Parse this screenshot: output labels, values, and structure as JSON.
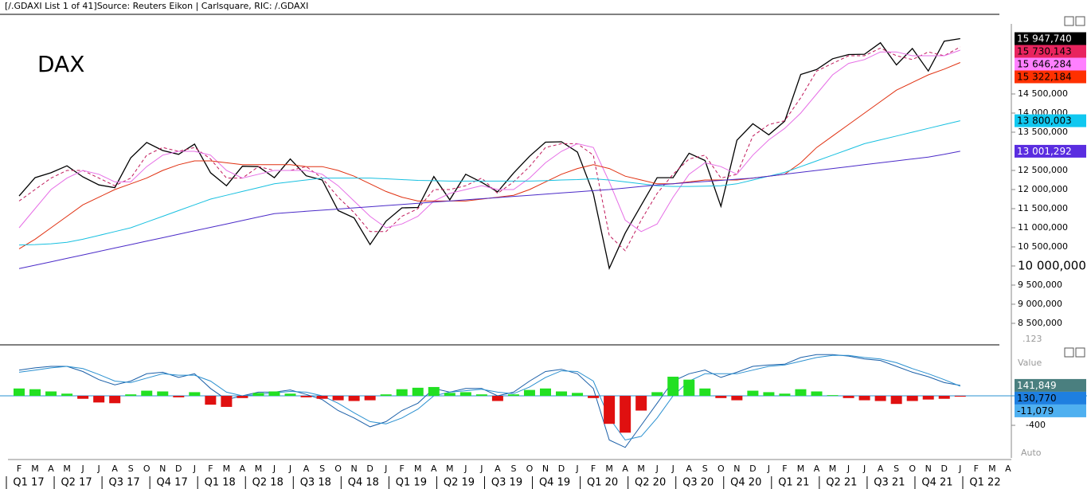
{
  "header": "[/.GDAXI List 1 of 41]Source: Reuters Eikon | Carlsquare, RIC: /.GDAXI",
  "chart_data": [
    {
      "type": "line",
      "title": "DAX",
      "corner_label": ".123",
      "ylim": [
        7937,
        16583
      ],
      "yticks": [
        {
          "value": 8500,
          "label": "8 500,000"
        },
        {
          "value": 9000,
          "label": "9 000,000"
        },
        {
          "value": 9500,
          "label": "9 500,000"
        },
        {
          "value": 10000,
          "label": "10 000,000"
        },
        {
          "value": 10500,
          "label": "10 500,000"
        },
        {
          "value": 11000,
          "label": "11 000,000"
        },
        {
          "value": 11500,
          "label": "11 500,000"
        },
        {
          "value": 12000,
          "label": "12 000,000"
        },
        {
          "value": 12500,
          "label": "12 500,000"
        },
        {
          "value": 13500,
          "label": "13 500,000"
        },
        {
          "value": 14000,
          "label": "14 000,000"
        },
        {
          "value": 14500,
          "label": "14 500,000"
        }
      ],
      "series": [
        {
          "color": "#000000",
          "box_color": "#000000",
          "box_text": "#ffffff",
          "last_label": "15 947,740",
          "values": [
            11830,
            12310,
            12440,
            12620,
            12330,
            12120,
            12050,
            12830,
            13230,
            13020,
            12920,
            13190,
            12440,
            12100,
            12610,
            12600,
            12310,
            12800,
            12360,
            12250,
            11450,
            11260,
            10560,
            11170,
            11520,
            11530,
            12340,
            11730,
            12400,
            12190,
            11940,
            12430,
            12870,
            13240,
            13250,
            12980,
            11890,
            9940,
            10860,
            11590,
            12310,
            12310,
            12950,
            12760,
            11560,
            13290,
            13720,
            13430,
            13790,
            15010,
            15140,
            15420,
            15530,
            15540,
            15840,
            15260,
            15690,
            15100,
            15880,
            15947.74,
            null,
            null,
            null
          ]
        },
        {
          "color": "#c0185a",
          "dashed": true,
          "box_color": "#e8245e",
          "box_text": "#000000",
          "last_label": "15 730,143",
          "values": [
            11700,
            12000,
            12300,
            12500,
            12500,
            12300,
            12100,
            12300,
            12900,
            13100,
            13000,
            13100,
            12800,
            12300,
            12300,
            12600,
            12500,
            12500,
            12600,
            12300,
            11800,
            11400,
            10900,
            10900,
            11300,
            11500,
            12000,
            12000,
            12100,
            12300,
            11900,
            12200,
            12600,
            13100,
            13200,
            13200,
            12900,
            10800,
            10400,
            11200,
            11900,
            12400,
            12800,
            12900,
            12300,
            12400,
            13400,
            13700,
            13800,
            14400,
            15100,
            15300,
            15500,
            15500,
            15700,
            15500,
            15400,
            15600,
            15500,
            15730.143,
            null,
            null,
            null
          ]
        },
        {
          "color": "#e66ee6",
          "box_color": "#ff80ff",
          "box_text": "#000000",
          "last_label": "15 646,284",
          "values": [
            11000,
            11500,
            12000,
            12300,
            12500,
            12400,
            12200,
            12200,
            12600,
            12900,
            13000,
            13000,
            12900,
            12500,
            12300,
            12400,
            12500,
            12500,
            12500,
            12400,
            12100,
            11700,
            11300,
            11000,
            11100,
            11300,
            11700,
            11900,
            12000,
            12100,
            12000,
            12000,
            12300,
            12700,
            13000,
            13200,
            13100,
            12200,
            11200,
            10900,
            11100,
            11800,
            12400,
            12700,
            12600,
            12400,
            12900,
            13300,
            13600,
            14000,
            14500,
            15000,
            15300,
            15400,
            15600,
            15600,
            15500,
            15500,
            15500,
            15646.284,
            null,
            null,
            null
          ]
        },
        {
          "color": "#e03010",
          "box_color": "#ff3000",
          "box_text": "#000000",
          "last_label": "15 322,184",
          "values": [
            10450,
            10700,
            11000,
            11300,
            11600,
            11800,
            12000,
            12150,
            12300,
            12500,
            12650,
            12750,
            12750,
            12700,
            12650,
            12650,
            12650,
            12650,
            12600,
            12600,
            12500,
            12350,
            12150,
            11950,
            11800,
            11700,
            11700,
            11700,
            11700,
            11750,
            11800,
            11850,
            12000,
            12200,
            12400,
            12550,
            12650,
            12550,
            12350,
            12250,
            12150,
            12150,
            12200,
            12250,
            12250,
            12250,
            12300,
            12350,
            12400,
            12700,
            13100,
            13400,
            13700,
            14000,
            14300,
            14600,
            14800,
            15000,
            15150,
            15322.184,
            null,
            null,
            null
          ]
        },
        {
          "color": "#18c0e0",
          "box_color": "#10c8f0",
          "box_text": "#000000",
          "last_label": "13 800,003",
          "values": [
            10550,
            10560,
            10580,
            10620,
            10700,
            10800,
            10900,
            11000,
            11150,
            11300,
            11450,
            11600,
            11750,
            11850,
            11950,
            12050,
            12150,
            12200,
            12250,
            12300,
            12300,
            12300,
            12300,
            12280,
            12260,
            12240,
            12230,
            12220,
            12220,
            12220,
            12220,
            12220,
            12220,
            12230,
            12250,
            12260,
            12280,
            12250,
            12200,
            12150,
            12100,
            12080,
            12080,
            12090,
            12100,
            12150,
            12250,
            12350,
            12450,
            12600,
            12750,
            12900,
            13050,
            13200,
            13300,
            13400,
            13500,
            13600,
            13700,
            13800.003,
            null,
            null,
            null
          ]
        },
        {
          "color": "#4b2bc8",
          "box_color": "#5a2de0",
          "box_text": "#ffffff",
          "last_label": "13 001,292",
          "values": [
            9930,
            10020,
            10110,
            10200,
            10290,
            10380,
            10470,
            10560,
            10650,
            10740,
            10830,
            10920,
            11010,
            11100,
            11190,
            11280,
            11370,
            11400,
            11430,
            11460,
            11490,
            11520,
            11550,
            11580,
            11610,
            11640,
            11670,
            11700,
            11730,
            11760,
            11790,
            11820,
            11850,
            11880,
            11910,
            11940,
            11970,
            12000,
            12040,
            12080,
            12120,
            12150,
            12180,
            12210,
            12240,
            12270,
            12300,
            12350,
            12400,
            12450,
            12500,
            12550,
            12600,
            12650,
            12700,
            12750,
            12800,
            12850,
            12920,
            13001.292,
            null,
            null,
            null
          ]
        }
      ]
    },
    {
      "type": "macd",
      "value_header": "Value",
      "scale_mode": "Auto",
      "ylim": [
        -843,
        660
      ],
      "yticks": [
        -400
      ],
      "categories": [
        "F",
        "M",
        "A",
        "M",
        "J",
        "J",
        "A",
        "S",
        "O",
        "N",
        "D",
        "J",
        "F",
        "M",
        "A",
        "M",
        "J",
        "J",
        "A",
        "S",
        "O",
        "N",
        "D",
        "J",
        "F",
        "M",
        "A",
        "M",
        "J",
        "J",
        "A",
        "S",
        "O",
        "N",
        "D",
        "J",
        "F",
        "M",
        "A",
        "M",
        "J",
        "J",
        "A",
        "S",
        "O",
        "N",
        "D",
        "J",
        "F",
        "M",
        "A",
        "M",
        "J",
        "J",
        "A",
        "S",
        "O",
        "N",
        "D",
        "J",
        "F",
        "M",
        "A"
      ],
      "quarters": [
        "Q1 17",
        "Q2 17",
        "Q3 17",
        "Q4 17",
        "Q1 18",
        "Q2 18",
        "Q3 18",
        "Q4 18",
        "Q1 19",
        "Q2 19",
        "Q3 19",
        "Q4 19",
        "Q1 20",
        "Q2 20",
        "Q3 20",
        "Q4 20",
        "Q1 21",
        "Q2 21",
        "Q3 21",
        "Q4 21",
        "Q1 22"
      ],
      "series": [
        {
          "kind": "line",
          "color": "#1a5fa8",
          "box_color": "#4a7f7f",
          "box_text": "#ffffff",
          "last_label": "141,849",
          "values": [
            350,
            380,
            400,
            400,
            330,
            220,
            150,
            200,
            300,
            320,
            250,
            300,
            100,
            -50,
            0,
            50,
            50,
            80,
            20,
            -50,
            -200,
            -300,
            -420,
            -350,
            -200,
            -100,
            100,
            50,
            100,
            100,
            0,
            50,
            200,
            330,
            360,
            300,
            100,
            -600,
            -700,
            -400,
            -100,
            200,
            300,
            350,
            250,
            320,
            400,
            420,
            430,
            520,
            560,
            560,
            540,
            500,
            480,
            400,
            320,
            260,
            180,
            141.849,
            null,
            null,
            null
          ]
        },
        {
          "kind": "line",
          "color": "#2a90d0",
          "box_color": "#1e7fe0",
          "box_text": "#000000",
          "last_label": "130,770",
          "values": [
            320,
            350,
            380,
            400,
            370,
            290,
            200,
            180,
            240,
            300,
            280,
            280,
            200,
            50,
            0,
            20,
            40,
            60,
            50,
            0,
            -100,
            -230,
            -350,
            -380,
            -300,
            -180,
            0,
            50,
            70,
            90,
            50,
            30,
            120,
            250,
            340,
            330,
            200,
            -300,
            -600,
            -550,
            -300,
            0,
            200,
            300,
            300,
            300,
            350,
            400,
            420,
            470,
            520,
            550,
            550,
            520,
            500,
            450,
            370,
            300,
            220,
            130.77,
            null,
            null,
            null
          ]
        },
        {
          "kind": "bar",
          "up_color": "#22e022",
          "down_color": "#e01010",
          "box_color": "#4fb0f0",
          "box_text": "#000000",
          "last_label": "-11,079",
          "values": [
            100,
            90,
            60,
            30,
            -40,
            -90,
            -100,
            20,
            70,
            60,
            -20,
            50,
            -120,
            -150,
            -30,
            40,
            60,
            30,
            -20,
            -40,
            -60,
            -70,
            -60,
            20,
            90,
            110,
            120,
            40,
            50,
            20,
            -70,
            20,
            80,
            100,
            60,
            40,
            -30,
            -380,
            -500,
            -200,
            50,
            260,
            220,
            100,
            -30,
            -60,
            70,
            50,
            30,
            90,
            60,
            10,
            -30,
            -60,
            -70,
            -110,
            -70,
            -50,
            -40,
            -11.079,
            null,
            null,
            null
          ]
        }
      ]
    }
  ]
}
